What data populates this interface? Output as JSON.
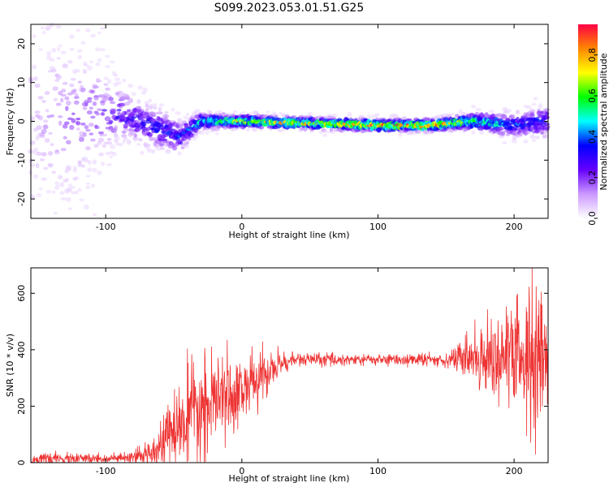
{
  "title": "S099.2023.053.01.51.G25",
  "colors": {
    "snr_line": "#ee3333",
    "frame": "#000000"
  },
  "chart_data": [
    {
      "type": "heatmap",
      "name": "spectrogram",
      "xlabel": "Height of straight line (km)",
      "ylabel": "Frequency (Hz)",
      "xlim": [
        -155,
        225
      ],
      "ylim": [
        -25,
        25
      ],
      "xticks": [
        -100,
        0,
        100,
        200
      ],
      "yticks": [
        -20,
        -10,
        0,
        10,
        20
      ],
      "colorbar": {
        "label": "Normalized spectral amplitude",
        "range": [
          0,
          0.95
        ],
        "ticks": [
          0.0,
          0.2,
          0.4,
          0.6,
          0.8
        ],
        "colormap": [
          "#ffffff",
          "#cc99ff",
          "#6600ff",
          "#0000ff",
          "#00ffff",
          "#00ff00",
          "#ffff00",
          "#ff8800",
          "#ff0044"
        ]
      },
      "description_points": [
        {
          "x": -155,
          "center_freq": 0,
          "spread_hz": 25,
          "amplitude": 0.1
        },
        {
          "x": -90,
          "center_freq": 2,
          "spread_hz": 6,
          "amplitude": 0.3
        },
        {
          "x": -60,
          "center_freq": -2,
          "spread_hz": 5,
          "amplitude": 0.35
        },
        {
          "x": -45,
          "center_freq": -4,
          "spread_hz": 4,
          "amplitude": 0.35
        },
        {
          "x": -30,
          "center_freq": 0,
          "spread_hz": 2,
          "amplitude": 0.5
        },
        {
          "x": 0,
          "center_freq": 0,
          "spread_hz": 1.5,
          "amplitude": 0.7
        },
        {
          "x": 100,
          "center_freq": -1,
          "spread_hz": 1.5,
          "amplitude": 0.8
        },
        {
          "x": 140,
          "center_freq": -1,
          "spread_hz": 1.5,
          "amplitude": 0.85
        },
        {
          "x": 170,
          "center_freq": 0,
          "spread_hz": 2,
          "amplitude": 0.6
        },
        {
          "x": 200,
          "center_freq": -1,
          "spread_hz": 3,
          "amplitude": 0.4
        },
        {
          "x": 225,
          "center_freq": 0,
          "spread_hz": 4,
          "amplitude": 0.35
        }
      ]
    },
    {
      "type": "line",
      "name": "snr",
      "xlabel": "Height of straight line (km)",
      "ylabel": "SNR (10 * v/v)",
      "xlim": [
        -155,
        225
      ],
      "ylim": [
        0,
        690
      ],
      "xticks": [
        -100,
        0,
        100,
        200
      ],
      "yticks": [
        0,
        200,
        400,
        600
      ],
      "envelope": [
        {
          "x": -155,
          "mean": 12,
          "noise": 10
        },
        {
          "x": -80,
          "mean": 15,
          "noise": 10
        },
        {
          "x": -70,
          "mean": 30,
          "noise": 20
        },
        {
          "x": -60,
          "mean": 70,
          "noise": 40
        },
        {
          "x": -50,
          "mean": 110,
          "noise": 60
        },
        {
          "x": -40,
          "mean": 150,
          "noise": 90
        },
        {
          "x": -30,
          "mean": 180,
          "noise": 90
        },
        {
          "x": -20,
          "mean": 210,
          "noise": 80
        },
        {
          "x": -10,
          "mean": 240,
          "noise": 70
        },
        {
          "x": 0,
          "mean": 260,
          "noise": 60
        },
        {
          "x": 10,
          "mean": 290,
          "noise": 50
        },
        {
          "x": 20,
          "mean": 320,
          "noise": 40
        },
        {
          "x": 30,
          "mean": 355,
          "noise": 20
        },
        {
          "x": 40,
          "mean": 365,
          "noise": 12
        },
        {
          "x": 100,
          "mean": 365,
          "noise": 10
        },
        {
          "x": 150,
          "mean": 365,
          "noise": 12
        },
        {
          "x": 160,
          "mean": 370,
          "noise": 30
        },
        {
          "x": 180,
          "mean": 380,
          "noise": 60
        },
        {
          "x": 200,
          "mean": 370,
          "noise": 110
        },
        {
          "x": 215,
          "mean": 360,
          "noise": 160
        },
        {
          "x": 225,
          "mean": 380,
          "noise": 120
        }
      ]
    }
  ]
}
